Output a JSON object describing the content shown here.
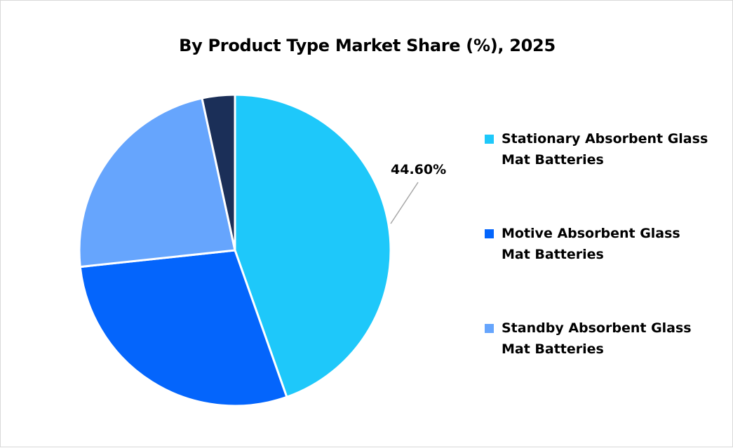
{
  "chart_data": {
    "type": "pie",
    "title": "By Product Type Market Share (%), 2025",
    "start_angle": "top, clockwise",
    "slices": [
      {
        "name": "Stationary Absorbent Glass Mat Batteries",
        "value": 44.6,
        "color": "#1ec8fa",
        "label": "44.60%"
      },
      {
        "name": "Motive Absorbent Glass Mat Batteries",
        "value": 28.7,
        "color": "#0465fc"
      },
      {
        "name": "Standby Absorbent Glass Mat Batteries",
        "value": 23.3,
        "color": "#66a5fd"
      },
      {
        "value": 3.4,
        "color": "#1b2f58"
      }
    ],
    "legend_position": "right"
  }
}
